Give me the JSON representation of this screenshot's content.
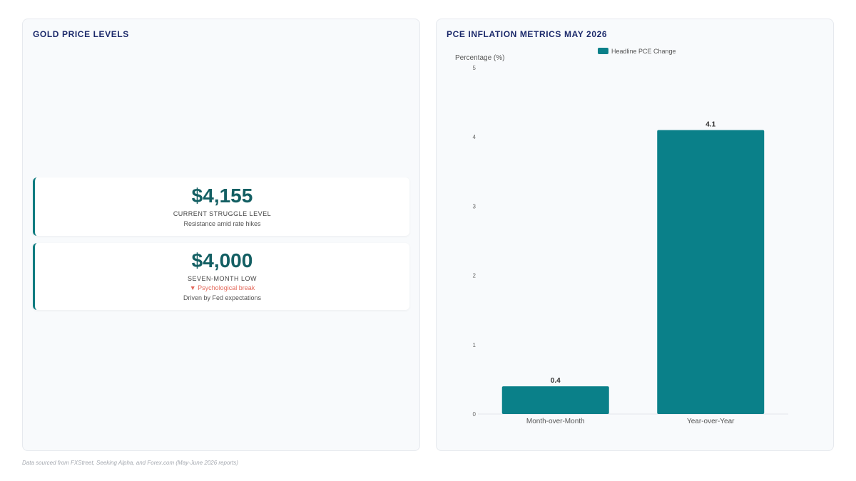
{
  "left_panel": {
    "title": "GOLD PRICE LEVELS",
    "cards": [
      {
        "value": "$4,155",
        "label": "CURRENT STRUGGLE LEVEL",
        "note": "Resistance amid rate hikes"
      },
      {
        "value": "$4,000",
        "label": "SEVEN-MONTH LOW",
        "change": "▼ Psychological break",
        "note": "Driven by Fed expectations"
      }
    ]
  },
  "right_panel": {
    "title": "PCE INFLATION METRICS MAY 2026"
  },
  "chart_data": {
    "type": "bar",
    "title": "PCE INFLATION METRICS MAY 2026",
    "categories": [
      "Month-over-Month",
      "Year-over-Year"
    ],
    "series": [
      {
        "name": "Headline PCE Change",
        "values": [
          0.4,
          4.1
        ],
        "color": "#0a8089"
      }
    ],
    "xlabel": "",
    "ylabel": "Percentage (%)",
    "ylim": [
      0,
      5
    ],
    "yticks": [
      0,
      1,
      2,
      3,
      4,
      5
    ],
    "data_labels": true,
    "grid": false,
    "legend_position": "top"
  },
  "footer": {
    "source": "Data sourced from FXStreet, Seeking Alpha, and Forex.com (May-June 2026 reports)"
  },
  "colors": {
    "accent": "#0f7c80",
    "value_text": "#135f63",
    "title_text": "#1c2a6b",
    "negative": "#e4685a"
  }
}
